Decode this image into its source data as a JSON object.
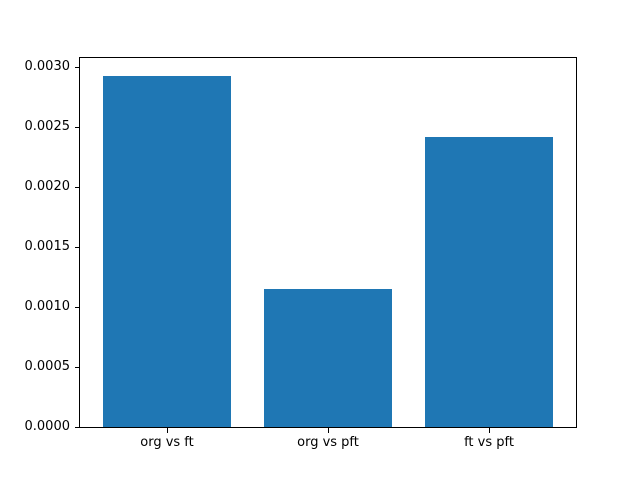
{
  "figure": {
    "background": "#ffffff"
  },
  "chart_data": {
    "type": "bar",
    "title": "",
    "xlabel": "",
    "ylabel": "",
    "categories": [
      "org vs ft",
      "org vs pft",
      "ft vs pft"
    ],
    "values": [
      0.00293,
      0.00115,
      0.00242
    ],
    "series": [
      {
        "name": "",
        "values": [
          0.00293,
          0.00115,
          0.00242
        ]
      }
    ],
    "bar_color": "#1f77b4",
    "axis_color": "#000000",
    "text_color": "#000000",
    "ylim": [
      0,
      0.003077
    ],
    "xlim": [
      -0.54,
      2.54
    ],
    "yticks": [
      0.0,
      0.0005,
      0.001,
      0.0015,
      0.002,
      0.0025,
      0.003
    ],
    "ytick_labels": [
      "0.0000",
      "0.0005",
      "0.0010",
      "0.0015",
      "0.0020",
      "0.0025",
      "0.0030"
    ],
    "bar_width": 0.8,
    "bar_centers": [
      0,
      1,
      2
    ],
    "grid": false,
    "legend": null
  }
}
